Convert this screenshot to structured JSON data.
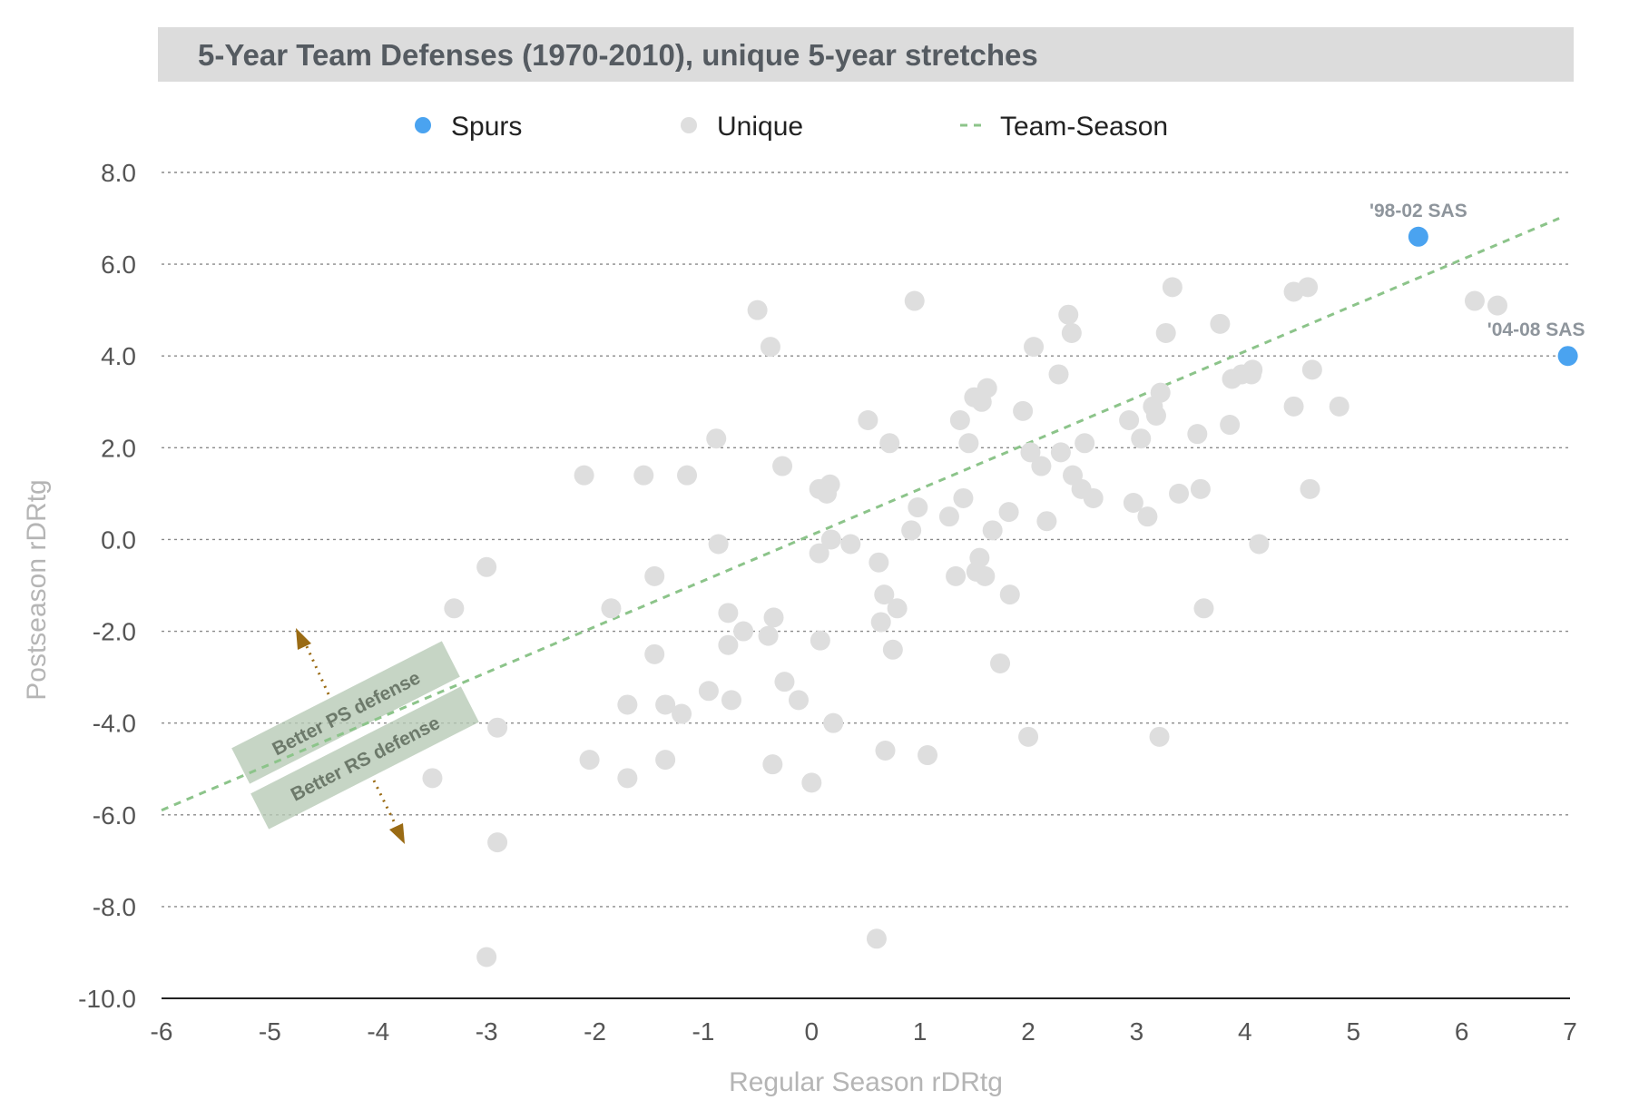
{
  "chart_data": {
    "type": "scatter",
    "title": "5-Year Team Defenses (1970-2010), unique 5-year stretches",
    "xlabel": "Regular Season rDRtg",
    "ylabel": "Postseason rDRtg",
    "xlim": [
      -6,
      7
    ],
    "ylim": [
      -10,
      8
    ],
    "x_ticks": [
      -6,
      -5,
      -4,
      -3,
      -2,
      -1,
      0,
      1,
      2,
      3,
      4,
      5,
      6,
      7
    ],
    "x_tick_labels": [
      "-6",
      "-5",
      "-4",
      "-3",
      "-2",
      "-1",
      "0",
      "1",
      "2",
      "3",
      "4",
      "5",
      "6",
      "7"
    ],
    "y_ticks": [
      8,
      6,
      4,
      2,
      0,
      -2,
      -4,
      -6,
      -8,
      -10
    ],
    "y_tick_labels": [
      "8.0",
      "6.0",
      "4.0",
      "2.0",
      "0.0",
      "-2.0",
      "-4.0",
      "-6.0",
      "-8.0",
      "-10.0"
    ],
    "grid": true,
    "legend_position": "top",
    "legend": [
      {
        "label": "Spurs",
        "marker": "dot",
        "color": "#4aa3f0"
      },
      {
        "label": "Unique",
        "marker": "dot",
        "color": "#dedede"
      },
      {
        "label": "Team-Season",
        "marker": "dashed-line",
        "color": "#8cc48a"
      }
    ],
    "series": [
      {
        "name": "Spurs",
        "color": "#4aa3f0",
        "points": [
          [
            5.6,
            6.6
          ],
          [
            6.98,
            4.0
          ]
        ],
        "labels": [
          "'98-02 SAS",
          "'04-08 SAS"
        ]
      },
      {
        "name": "Unique",
        "color": "#dedede",
        "points": [
          [
            -3.0,
            -9.1
          ],
          [
            -2.9,
            -6.6
          ],
          [
            -2.9,
            -4.1
          ],
          [
            -3.0,
            -0.6
          ],
          [
            -3.3,
            -1.5
          ],
          [
            -3.5,
            -5.2
          ],
          [
            -2.1,
            1.4
          ],
          [
            -2.05,
            -4.8
          ],
          [
            -1.85,
            -1.5
          ],
          [
            -1.7,
            -3.6
          ],
          [
            -1.7,
            -5.2
          ],
          [
            -1.55,
            1.4
          ],
          [
            -1.45,
            -0.8
          ],
          [
            -1.45,
            -2.5
          ],
          [
            -1.35,
            -3.6
          ],
          [
            -1.35,
            -4.8
          ],
          [
            -1.15,
            1.4
          ],
          [
            -1.2,
            -3.8
          ],
          [
            -0.95,
            -3.3
          ],
          [
            -0.88,
            2.2
          ],
          [
            -0.86,
            -0.1
          ],
          [
            -0.77,
            -1.6
          ],
          [
            -0.77,
            -2.3
          ],
          [
            -0.74,
            -3.5
          ],
          [
            -0.63,
            -2.0
          ],
          [
            -0.5,
            5.0
          ],
          [
            -0.38,
            4.2
          ],
          [
            -0.4,
            -2.1
          ],
          [
            -0.35,
            -1.7
          ],
          [
            -0.36,
            -4.9
          ],
          [
            -0.27,
            1.6
          ],
          [
            -0.25,
            -3.1
          ],
          [
            -0.12,
            -3.5
          ],
          [
            0.0,
            -5.3
          ],
          [
            0.07,
            1.1
          ],
          [
            0.07,
            -0.3
          ],
          [
            0.08,
            -2.2
          ],
          [
            0.14,
            1.0
          ],
          [
            0.17,
            1.2
          ],
          [
            0.18,
            0.0
          ],
          [
            0.2,
            -4.0
          ],
          [
            0.36,
            -0.1
          ],
          [
            0.52,
            2.6
          ],
          [
            0.62,
            -0.5
          ],
          [
            0.64,
            -1.8
          ],
          [
            0.67,
            -1.2
          ],
          [
            0.68,
            -4.6
          ],
          [
            0.6,
            -8.7
          ],
          [
            0.72,
            2.1
          ],
          [
            0.75,
            -2.4
          ],
          [
            0.79,
            -1.5
          ],
          [
            0.95,
            5.2
          ],
          [
            0.92,
            0.2
          ],
          [
            0.98,
            0.7
          ],
          [
            1.07,
            -4.7
          ],
          [
            1.27,
            0.5
          ],
          [
            1.33,
            -0.8
          ],
          [
            1.37,
            2.6
          ],
          [
            1.4,
            0.9
          ],
          [
            1.45,
            2.1
          ],
          [
            1.5,
            3.1
          ],
          [
            1.52,
            -0.7
          ],
          [
            1.55,
            -0.4
          ],
          [
            1.57,
            3.0
          ],
          [
            1.6,
            -0.8
          ],
          [
            1.62,
            3.3
          ],
          [
            1.67,
            0.2
          ],
          [
            1.74,
            -2.7
          ],
          [
            1.82,
            0.6
          ],
          [
            1.83,
            -1.2
          ],
          [
            1.95,
            2.8
          ],
          [
            2.0,
            -4.3
          ],
          [
            2.02,
            1.9
          ],
          [
            2.05,
            4.2
          ],
          [
            2.12,
            1.6
          ],
          [
            2.17,
            0.4
          ],
          [
            2.28,
            3.6
          ],
          [
            2.3,
            1.9
          ],
          [
            2.37,
            4.9
          ],
          [
            2.4,
            4.5
          ],
          [
            2.41,
            1.4
          ],
          [
            2.49,
            1.1
          ],
          [
            2.52,
            2.1
          ],
          [
            2.6,
            0.9
          ],
          [
            2.93,
            2.6
          ],
          [
            2.97,
            0.8
          ],
          [
            3.04,
            2.2
          ],
          [
            3.1,
            0.5
          ],
          [
            3.15,
            2.9
          ],
          [
            3.18,
            2.7
          ],
          [
            3.21,
            -4.3
          ],
          [
            3.22,
            3.2
          ],
          [
            3.27,
            4.5
          ],
          [
            3.33,
            5.5
          ],
          [
            3.39,
            1.0
          ],
          [
            3.56,
            2.3
          ],
          [
            3.59,
            1.1
          ],
          [
            3.62,
            -1.5
          ],
          [
            3.77,
            4.7
          ],
          [
            3.86,
            2.5
          ],
          [
            3.88,
            3.5
          ],
          [
            3.97,
            3.6
          ],
          [
            4.06,
            3.6
          ],
          [
            4.07,
            3.7
          ],
          [
            4.13,
            -0.1
          ],
          [
            4.45,
            5.4
          ],
          [
            4.45,
            2.9
          ],
          [
            4.58,
            5.5
          ],
          [
            4.6,
            1.1
          ],
          [
            4.62,
            3.7
          ],
          [
            4.87,
            2.9
          ],
          [
            6.12,
            5.2
          ],
          [
            6.33,
            5.1
          ]
        ]
      },
      {
        "name": "Team-Season",
        "type": "line",
        "style": "dashed",
        "color": "#8cc48a",
        "points": [
          [
            -6.0,
            -5.9
          ],
          [
            6.9,
            7.0
          ]
        ]
      }
    ],
    "annotations": [
      {
        "text": "Better PS defense",
        "direction": "up-left"
      },
      {
        "text": "Better RS defense",
        "direction": "down-right"
      }
    ]
  }
}
